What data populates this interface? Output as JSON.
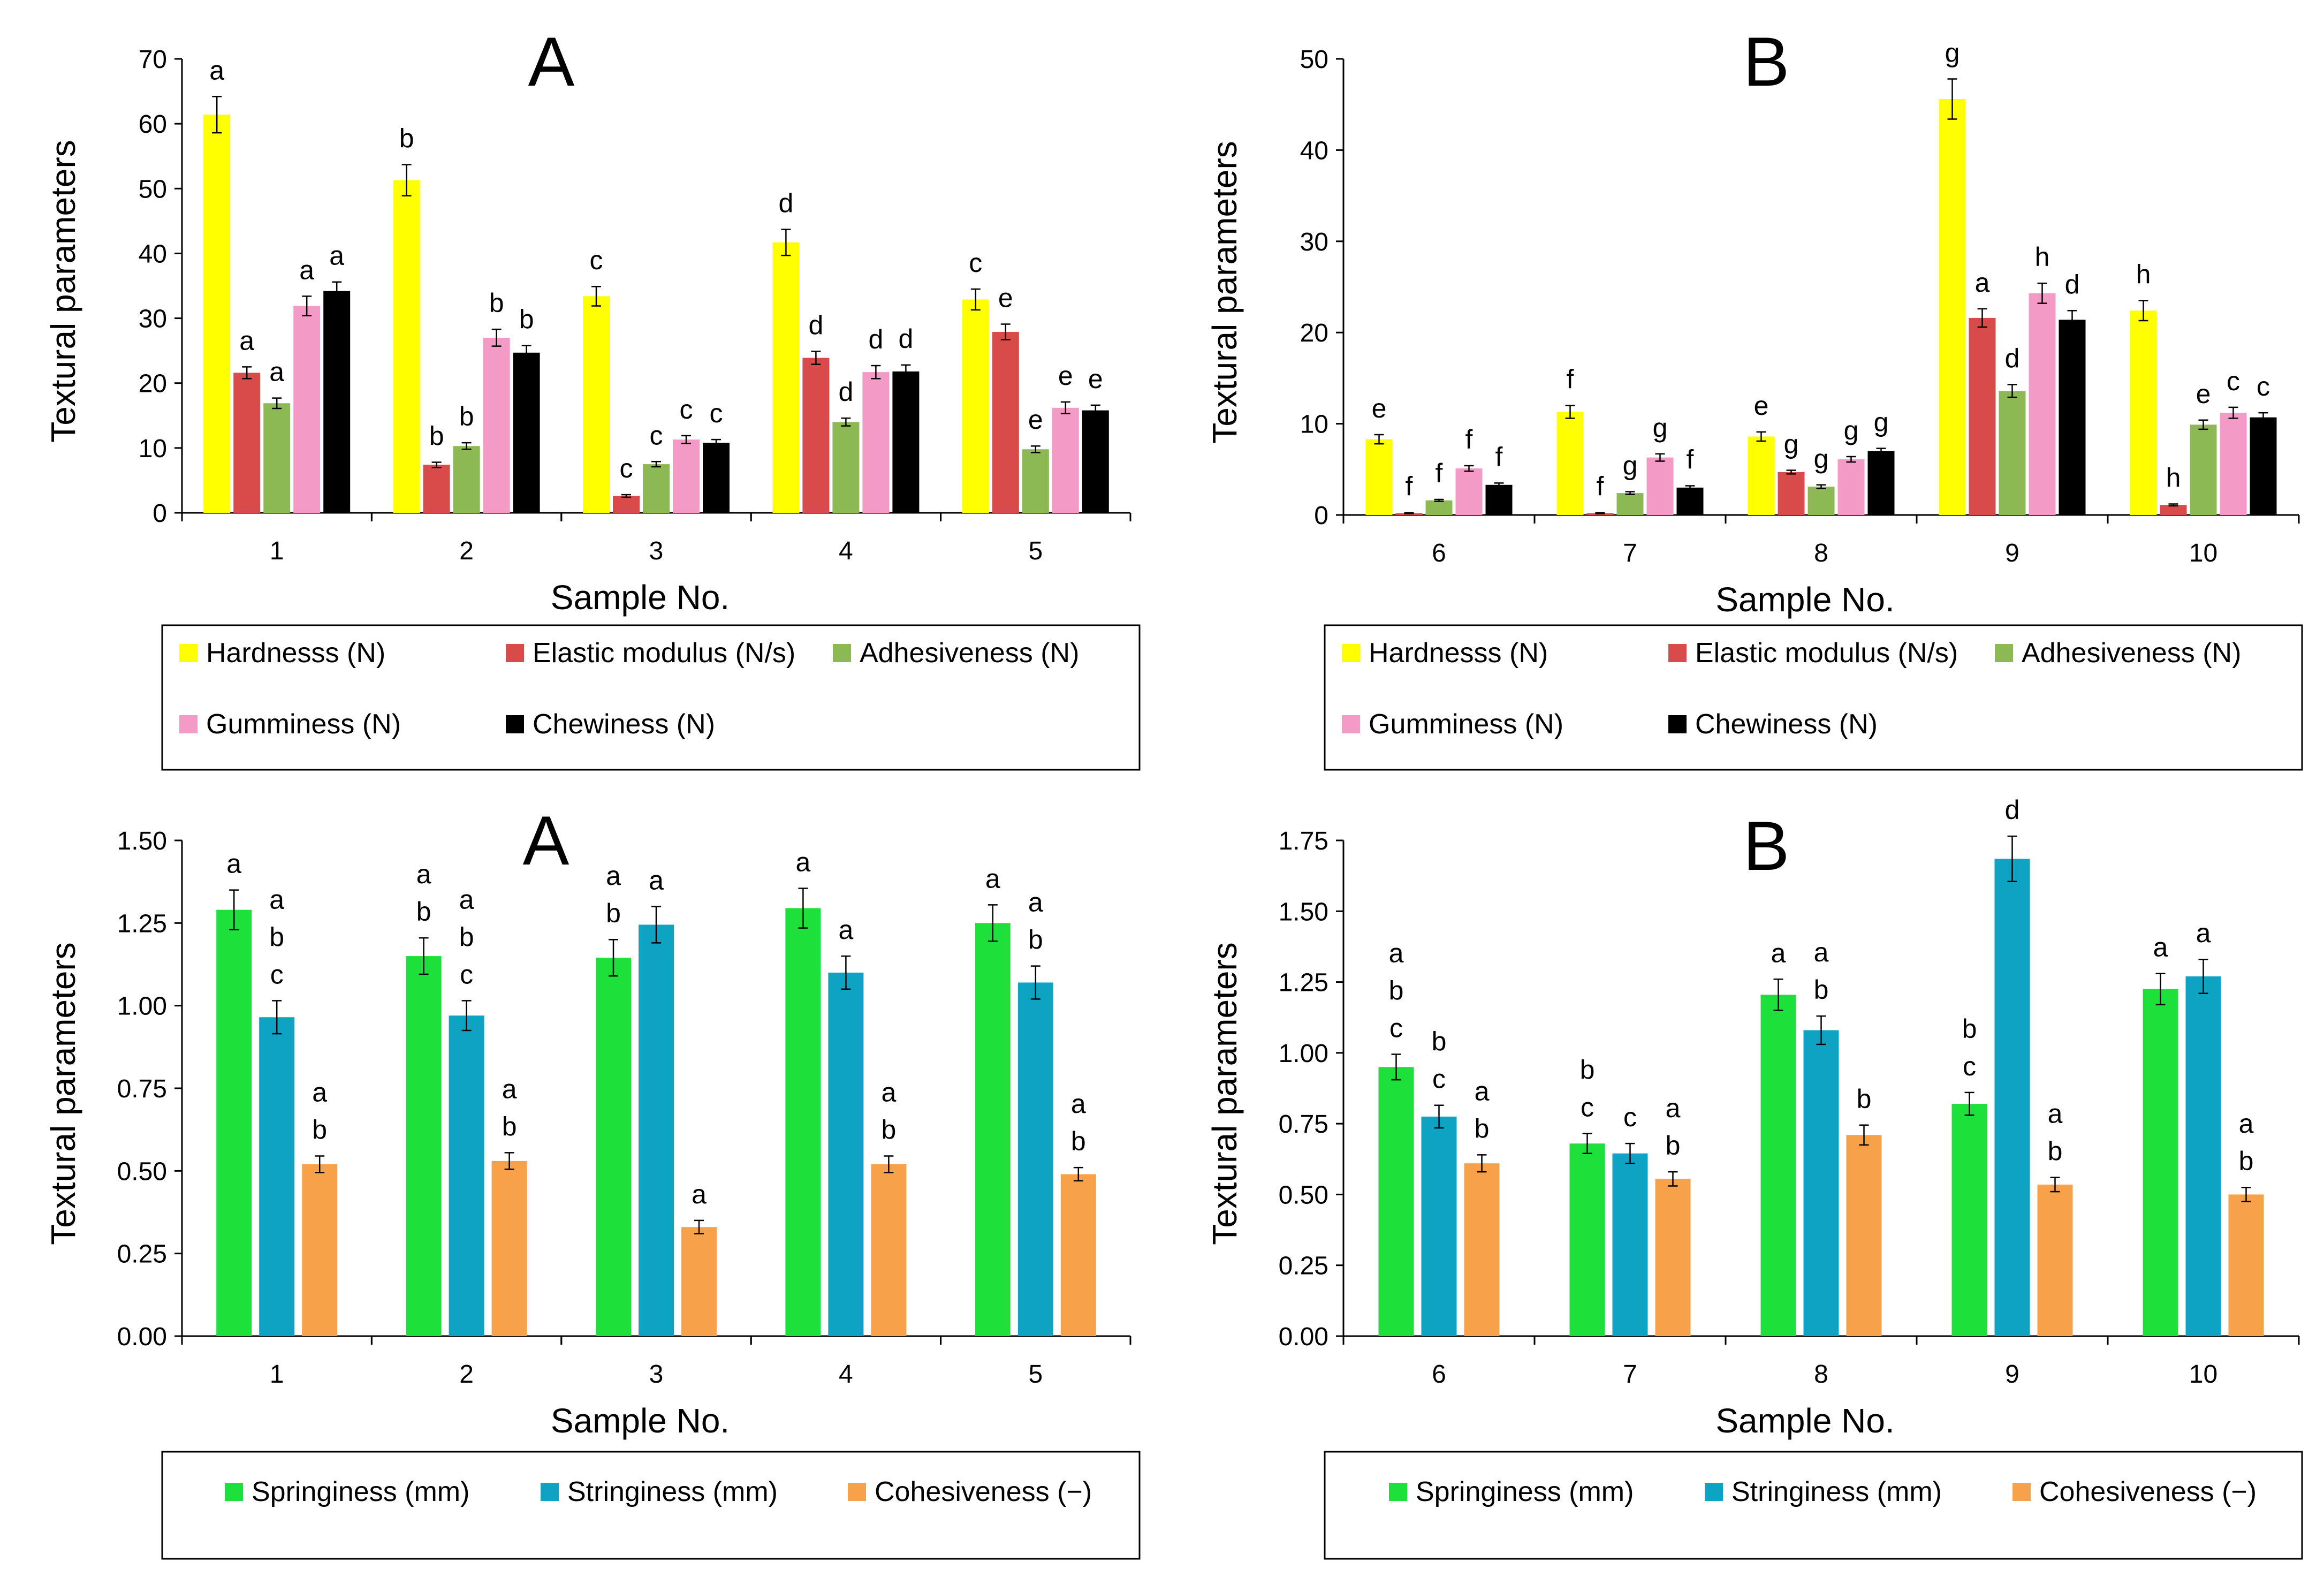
{
  "chart_data": [
    {
      "id": "top-left",
      "type": "bar",
      "panel_label": "A",
      "xlabel": "Sample No.",
      "ylabel": "Textural parameters",
      "ylim": [
        0,
        70
      ],
      "ytick_step": 10,
      "ytick_labels": [
        "0",
        "10",
        "20",
        "30",
        "40",
        "50",
        "60",
        "70"
      ],
      "categories": [
        "1",
        "2",
        "3",
        "4",
        "5"
      ],
      "series": [
        {
          "name": "Hardnesss (N)",
          "color": "#FFFF00",
          "values": [
            61.4,
            51.3,
            33.4,
            41.7,
            32.9
          ],
          "errors": [
            2.8,
            2.4,
            1.5,
            2.0,
            1.6
          ],
          "letters": [
            "a",
            "b",
            "c",
            "d",
            "c"
          ]
        },
        {
          "name": "Elastic modulus (N/s)",
          "color": "#D94B4B",
          "values": [
            21.6,
            7.4,
            2.6,
            23.9,
            27.9
          ],
          "errors": [
            0.9,
            0.4,
            0.2,
            1.0,
            1.2
          ],
          "letters": [
            "a",
            "b",
            "c",
            "d",
            "e"
          ]
        },
        {
          "name": "Adhesiveness (N)",
          "color": "#8DB954",
          "values": [
            16.9,
            10.3,
            7.5,
            14.0,
            9.8
          ],
          "errors": [
            0.8,
            0.5,
            0.4,
            0.6,
            0.5
          ],
          "letters": [
            "a",
            "b",
            "c",
            "d",
            "e"
          ]
        },
        {
          "name": "Gumminess (N)",
          "color": "#F49AC6",
          "values": [
            31.9,
            27.0,
            11.3,
            21.7,
            16.2
          ],
          "errors": [
            1.5,
            1.3,
            0.6,
            1.0,
            0.9
          ],
          "letters": [
            "a",
            "b",
            "c",
            "d",
            "e"
          ]
        },
        {
          "name": "Chewiness (N)",
          "color": "#000000",
          "values": [
            34.2,
            24.7,
            10.8,
            21.8,
            15.8
          ],
          "errors": [
            1.4,
            1.1,
            0.5,
            1.0,
            0.8
          ],
          "letters": [
            "a",
            "b",
            "c",
            "d",
            "e"
          ]
        }
      ]
    },
    {
      "id": "top-right",
      "type": "bar",
      "panel_label": "B",
      "xlabel": "Sample No.",
      "ylabel": "Textural parameters",
      "ylim": [
        0,
        50
      ],
      "ytick_step": 10,
      "ytick_labels": [
        "0",
        "10",
        "20",
        "30",
        "40",
        "50"
      ],
      "categories": [
        "6",
        "7",
        "8",
        "9",
        "10"
      ],
      "series": [
        {
          "name": "Hardnesss (N)",
          "color": "#FFFF00",
          "values": [
            8.3,
            11.3,
            8.6,
            45.6,
            22.4
          ],
          "errors": [
            0.5,
            0.7,
            0.5,
            2.2,
            1.1
          ],
          "letters": [
            "e",
            "f",
            "e",
            "g",
            "h"
          ]
        },
        {
          "name": "Elastic modulus (N/s)",
          "color": "#D94B4B",
          "values": [
            0.2,
            0.2,
            4.7,
            21.6,
            1.1
          ],
          "errors": [
            0.05,
            0.05,
            0.2,
            1.0,
            0.1
          ],
          "letters": [
            "f",
            "f",
            "g",
            "a",
            "h"
          ]
        },
        {
          "name": "Adhesiveness (N)",
          "color": "#8DB954",
          "values": [
            1.6,
            2.4,
            3.1,
            13.6,
            9.9
          ],
          "errors": [
            0.1,
            0.15,
            0.2,
            0.7,
            0.5
          ],
          "letters": [
            "f",
            "g",
            "g",
            "d",
            "e"
          ]
        },
        {
          "name": "Gumminess (N)",
          "color": "#F49AC6",
          "values": [
            5.1,
            6.3,
            6.1,
            24.3,
            11.2
          ],
          "errors": [
            0.3,
            0.4,
            0.3,
            1.1,
            0.6
          ],
          "letters": [
            "f",
            "g",
            "g",
            "h",
            "c"
          ]
        },
        {
          "name": "Chewiness (N)",
          "color": "#000000",
          "values": [
            3.3,
            3.0,
            7.0,
            21.4,
            10.7
          ],
          "errors": [
            0.2,
            0.2,
            0.3,
            1.0,
            0.5
          ],
          "letters": [
            "f",
            "f",
            "g",
            "d",
            "c"
          ]
        }
      ]
    },
    {
      "id": "bottom-left",
      "type": "bar",
      "panel_label": "A",
      "xlabel": "Sample No.",
      "ylabel": "Textural parameters",
      "ylim": [
        0,
        1.5
      ],
      "ytick_step": 0.25,
      "ytick_labels": [
        "0.00",
        "0.25",
        "0.50",
        "0.75",
        "1.00",
        "1.25",
        "1.50"
      ],
      "categories": [
        "1",
        "2",
        "3",
        "4",
        "5"
      ],
      "series": [
        {
          "name": "Springiness (mm)",
          "color": "#1EE03A",
          "values": [
            1.29,
            1.15,
            1.145,
            1.295,
            1.25
          ],
          "errors": [
            0.06,
            0.055,
            0.055,
            0.06,
            0.055
          ],
          "letters": [
            "a",
            "a\nb",
            "a\nb",
            "a",
            "a"
          ]
        },
        {
          "name": "Stringiness (mm)",
          "color": "#0FA3C3",
          "values": [
            0.965,
            0.97,
            1.245,
            1.1,
            1.07
          ],
          "errors": [
            0.05,
            0.045,
            0.055,
            0.05,
            0.05
          ],
          "letters": [
            "a\nb\nc",
            "a\nb\nc",
            "a",
            "a",
            "a\nb"
          ]
        },
        {
          "name": "Cohesiveness  (−)",
          "color": "#F7A14B",
          "values": [
            0.52,
            0.53,
            0.33,
            0.52,
            0.49
          ],
          "errors": [
            0.025,
            0.025,
            0.02,
            0.025,
            0.02
          ],
          "letters": [
            "a\nb",
            "a\nb",
            "a",
            "a\nb",
            "a\nb"
          ]
        }
      ]
    },
    {
      "id": "bottom-right",
      "type": "bar",
      "panel_label": "B",
      "xlabel": "Sample No.",
      "ylabel": "Textural parameters",
      "ylim": [
        0,
        1.75
      ],
      "ytick_step": 0.25,
      "ytick_labels": [
        "0.00",
        "0.25",
        "0.50",
        "0.75",
        "1.00",
        "1.25",
        "1.50",
        "1.75"
      ],
      "categories": [
        "6",
        "7",
        "8",
        "9",
        "10"
      ],
      "series": [
        {
          "name": "Springiness (mm)",
          "color": "#1EE03A",
          "values": [
            0.95,
            0.68,
            1.205,
            0.82,
            1.225
          ],
          "errors": [
            0.045,
            0.035,
            0.055,
            0.04,
            0.055
          ],
          "letters": [
            "a\nb\nc",
            "b\nc",
            "a",
            "b\nc",
            "a"
          ]
        },
        {
          "name": "Stringiness (mm)",
          "color": "#0FA3C3",
          "values": [
            0.775,
            0.645,
            1.08,
            1.685,
            1.27
          ],
          "errors": [
            0.04,
            0.035,
            0.05,
            0.08,
            0.06
          ],
          "letters": [
            "b\nc",
            "c",
            "a\nb",
            "d",
            "a"
          ]
        },
        {
          "name": "Cohesiveness  (−)",
          "color": "#F7A14B",
          "values": [
            0.61,
            0.555,
            0.71,
            0.535,
            0.5
          ],
          "errors": [
            0.03,
            0.025,
            0.035,
            0.025,
            0.025
          ],
          "letters": [
            "a\nb",
            "a\nb",
            "b",
            "a\nb",
            "a\nb"
          ]
        }
      ]
    }
  ]
}
